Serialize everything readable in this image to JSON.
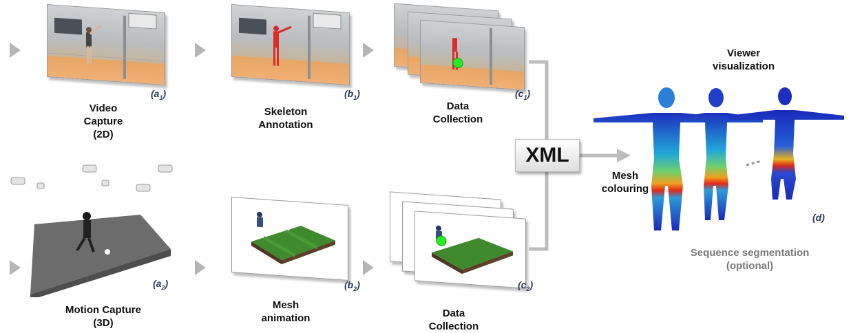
{
  "steps": {
    "video_capture": {
      "lines": [
        "Video",
        "Capture",
        "(2D)"
      ],
      "tag": "a",
      "sub": "1"
    },
    "skeleton_annotation": {
      "lines": [
        "Skeleton",
        "Annotation"
      ],
      "tag": "b",
      "sub": "1"
    },
    "data_collection_top": {
      "lines": [
        "Data",
        "Collection"
      ],
      "tag": "c",
      "sub": "1"
    },
    "motion_capture": {
      "lines": [
        "Motion Capture",
        "(3D)"
      ],
      "tag": "a",
      "sub": "2"
    },
    "mesh_animation": {
      "lines": [
        "Mesh",
        "animation"
      ],
      "tag": "b",
      "sub": "2"
    },
    "data_collection_bottom": {
      "lines": [
        "Data",
        "Collection"
      ],
      "tag": "c",
      "sub": "2"
    }
  },
  "xml_label": "XML",
  "mesh_colouring": [
    "Mesh",
    "colouring"
  ],
  "viewer": {
    "lines": [
      "Viewer",
      "visualization"
    ],
    "tag": "(d)"
  },
  "segmentation": [
    "Sequence segmentation",
    "(optional)"
  ],
  "colors": {
    "arrow": "#b5b5b5",
    "connector": "#bdbdbd",
    "tag": "#2e3a5a",
    "field": "#3f8a2c",
    "marker": "#22ee22"
  }
}
